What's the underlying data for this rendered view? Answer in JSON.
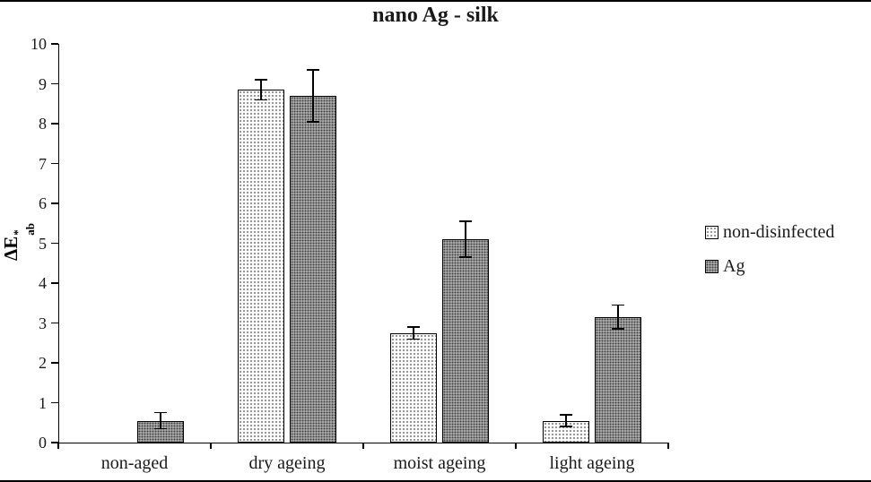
{
  "chart_data": {
    "type": "bar",
    "title": "nano Ag - silk",
    "ylabel": "ΔE*ab",
    "ylabel_parts": {
      "base": "ΔE",
      "sup": "*",
      "sub": "ab"
    },
    "xlabel": "",
    "categories": [
      "non-aged",
      "dry ageing",
      "moist ageing",
      "light ageing"
    ],
    "series": [
      {
        "name": "non-disinfected",
        "values": [
          0,
          8.85,
          2.75,
          0.55
        ],
        "errors": [
          0,
          0.25,
          0.15,
          0.15
        ]
      },
      {
        "name": "Ag",
        "values": [
          0.55,
          8.7,
          5.1,
          3.15
        ],
        "errors": [
          0.2,
          0.65,
          0.45,
          0.3
        ]
      }
    ],
    "ylim": [
      0,
      10
    ],
    "ytick_step": 1,
    "yticks": [
      "0",
      "1",
      "2",
      "3",
      "4",
      "5",
      "6",
      "7",
      "8",
      "9",
      "10"
    ],
    "grid": false,
    "legend_position": "right",
    "bar_styles": [
      {
        "name": "non-disinfected",
        "fill": "#fafafa",
        "dot": "#8c8c8c",
        "border": "#000000"
      },
      {
        "name": "Ag",
        "fill": "#b7b7b7",
        "dot": "#3f3f3f",
        "border": "#000000"
      }
    ],
    "error_bar_color": "#000000"
  }
}
